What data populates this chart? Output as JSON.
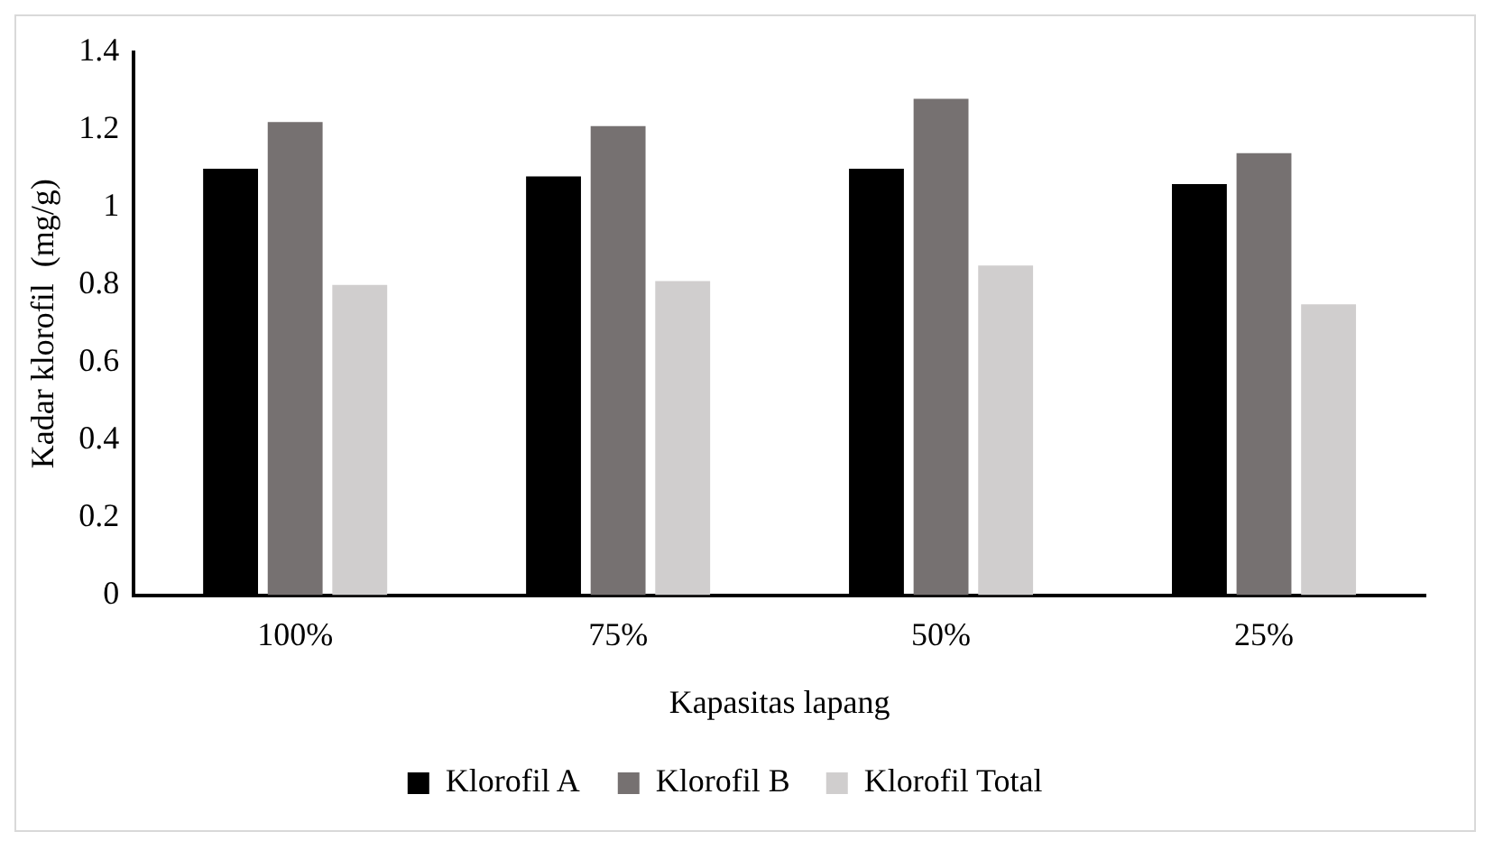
{
  "chart_data": {
    "type": "bar",
    "xlabel": "Kapasitas lapang",
    "ylabel": "Kadar klorofil  (mg/g)",
    "categories": [
      "100%",
      "75%",
      "50%",
      "25%"
    ],
    "series": [
      {
        "name": "Klorofil A",
        "color": "#000000",
        "values": [
          1.1,
          1.08,
          1.1,
          1.06
        ]
      },
      {
        "name": "Klorofil B",
        "color": "#767171",
        "values": [
          1.22,
          1.21,
          1.28,
          1.14
        ]
      },
      {
        "name": "Klorofil Total",
        "color": "#d0cece",
        "values": [
          0.8,
          0.81,
          0.85,
          0.75
        ]
      }
    ],
    "ylim": [
      0,
      1.4
    ],
    "yticks": [
      0,
      0.2,
      0.4,
      0.6,
      0.8,
      1,
      1.2,
      1.4
    ],
    "grid": false,
    "legend": "bottom"
  }
}
